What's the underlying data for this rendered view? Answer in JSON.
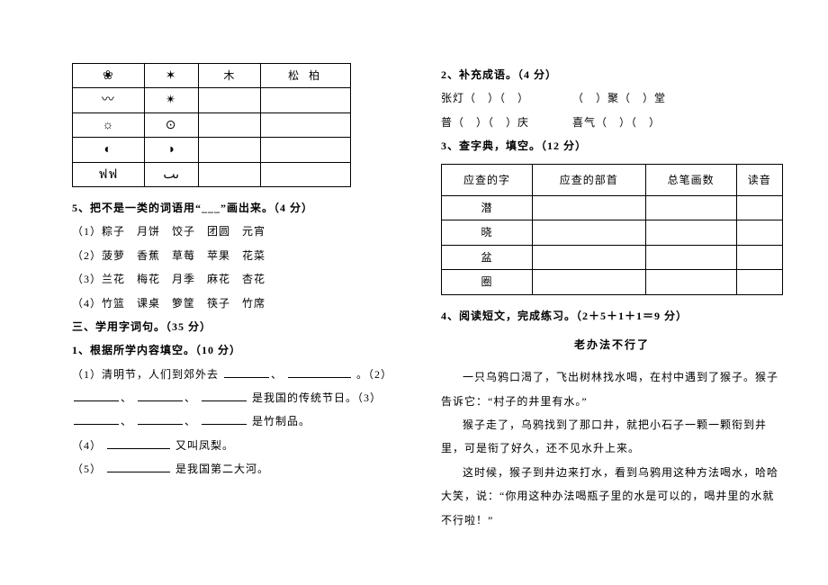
{
  "left": {
    "table_header_right": "松   柏",
    "table_c3": "木",
    "glyphs": {
      "r0c0": "❀",
      "r0c1": "✶",
      "r1c0": "〰",
      "r1c1": "✴",
      "r2c0": "☼",
      "r2c1": "⊙",
      "r3c0": "◐",
      "r3c1": "◑",
      "r4c0": "ฟฟ",
      "r4c1": "ٮٮ"
    },
    "q5_title": "5、把不是一类的词语用“___”画出来。（4 分）",
    "q5_1": "（1）粽子　月饼　饺子　团圆　元宵",
    "q5_2": "（2）菠萝　香蕉　草莓　苹果　花菜",
    "q5_3": "（3）兰花　梅花　月季　麻花　杏花",
    "q5_4": "（4）竹篮　课桌　箩筐　筷子　竹席",
    "s3_title": "三、学用字词句。（35 分）",
    "q1_title": "1、根据所学内容填空。（10 分）",
    "q1_1a": "（1）清明节，人们到郊外去 ",
    "q1_1b": "。（2）",
    "q1_2b": "是我国的传统节日。（3）",
    "q1_3b": "是竹制品。",
    "q1_4a": "（4）",
    "q1_4b": "又叫凤梨。",
    "q1_5a": "（5）",
    "q1_5b": "是我国第二大河。"
  },
  "right": {
    "q2_title": "2、补充成语。（4 分）",
    "q2_1a": "张灯（　）（　）",
    "q2_1b": "（　）聚（　）堂",
    "q2_2a": "普（　）（　）庆",
    "q2_2b": "喜气（　）（　）",
    "q3_title": "3、查字典，填空。（12 分）",
    "dict_headers": [
      "应查的字",
      "应查的部首",
      "总笔画数",
      "读音"
    ],
    "dict_chars": [
      "潜",
      "晓",
      "盆",
      "圈"
    ],
    "q4_title": "4、阅读短文，完成练习。（2＋5＋1＋1＝9 分）",
    "story_title": "老办法不行了",
    "p1": "一只乌鸦口渴了，飞出树林找水喝，在村中遇到了猴子。猴子告诉它：“村子的井里有水。”",
    "p2": "猴子走了，乌鸦找到了那口井，就把小石子一颗一颗衔到井里，可是衔了好久，还不见水升上来。",
    "p3": "这时候，猴子到井边来打水，看到乌鸦用这种方法喝水，哈哈大笑，说：“你用这种办法喝瓶子里的水是可以的，喝井里的水就不行啦！”"
  }
}
